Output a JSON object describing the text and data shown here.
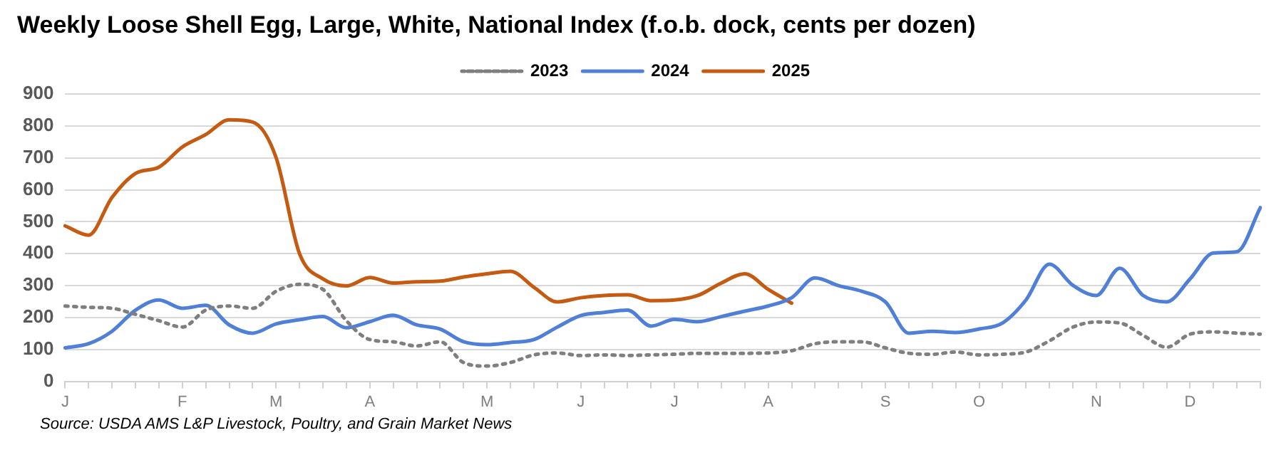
{
  "chart_data": {
    "type": "line",
    "title": "Weekly Loose Shell Egg, Large, White, National Index (f.o.b. dock, cents per dozen)",
    "categories": [
      "J",
      null,
      null,
      null,
      null,
      "F",
      null,
      null,
      null,
      "M",
      null,
      null,
      null,
      "A",
      null,
      null,
      null,
      null,
      "M",
      null,
      null,
      null,
      "J",
      null,
      null,
      null,
      "J",
      null,
      null,
      null,
      "A",
      null,
      null,
      null,
      null,
      "S",
      null,
      null,
      null,
      "O",
      null,
      null,
      null,
      null,
      "N",
      null,
      null,
      null,
      "D",
      null,
      null,
      null
    ],
    "series": [
      {
        "name": "2023",
        "color": "#7f7f7f",
        "line_style": "dotted",
        "values": [
          236,
          232,
          229,
          210,
          190,
          170,
          223,
          236,
          229,
          282,
          304,
          288,
          190,
          131,
          124,
          111,
          124,
          59,
          48,
          59,
          83,
          89,
          81,
          83,
          81,
          83,
          85,
          88,
          88,
          88,
          89,
          96,
          118,
          124,
          124,
          105,
          88,
          85,
          92,
          83,
          85,
          92,
          127,
          170,
          186,
          183,
          144,
          107,
          148,
          155,
          151,
          148
        ]
      },
      {
        "name": "2024",
        "color": "#4f7fd6",
        "line_style": "solid",
        "values": [
          105,
          118,
          157,
          223,
          255,
          229,
          238,
          177,
          151,
          180,
          193,
          203,
          168,
          187,
          207,
          177,
          164,
          124,
          115,
          122,
          131,
          170,
          206,
          216,
          223,
          173,
          194,
          187,
          203,
          220,
          236,
          262,
          324,
          300,
          282,
          249,
          151,
          157,
          153,
          164,
          183,
          255,
          367,
          301,
          269,
          354,
          269,
          249,
          321,
          402,
          406,
          544
        ]
      },
      {
        "name": "2025",
        "color": "#c55a11",
        "line_style": "solid",
        "values": [
          487,
          458,
          576,
          651,
          671,
          734,
          773,
          819,
          812,
          701,
          400,
          321,
          299,
          325,
          308,
          312,
          314,
          327,
          337,
          345,
          295,
          249,
          262,
          269,
          271,
          253,
          255,
          269,
          308,
          337,
          288,
          245,
          null,
          null,
          null,
          null,
          null,
          null,
          null,
          null,
          null,
          null,
          null,
          null,
          null,
          null,
          null,
          null,
          null,
          null,
          null,
          null
        ]
      }
    ],
    "ylim": [
      0,
      900
    ],
    "yticks": [
      0,
      100,
      200,
      300,
      400,
      500,
      600,
      700,
      800,
      900
    ],
    "grid": "y",
    "legend": "top",
    "marker": "none",
    "annotations": [
      "Source: USDA AMS L&P Livestock, Poultry, and Grain Market News"
    ]
  }
}
